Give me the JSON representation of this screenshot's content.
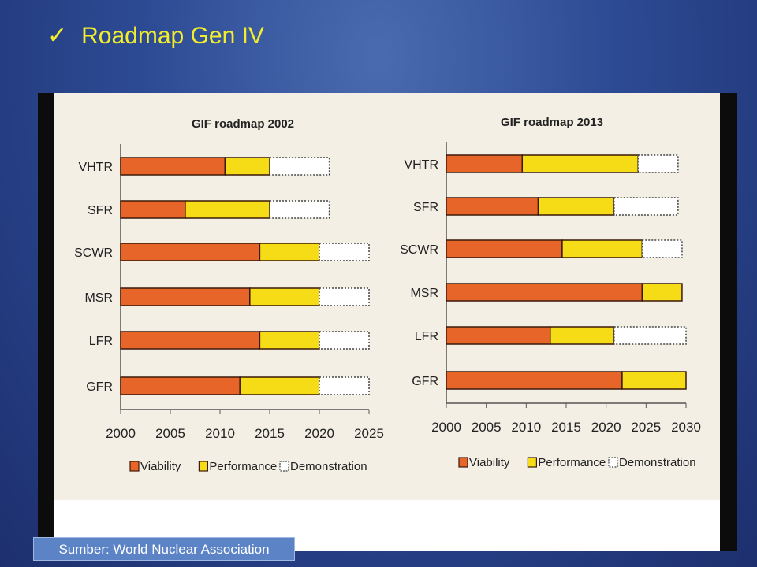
{
  "slide": {
    "title": "Roadmap Gen IV",
    "check_icon": "✓",
    "source": "Sumber: World Nuclear Association",
    "title_color": "#f2ee2c"
  },
  "colors": {
    "viability": "#e8652a",
    "performance": "#f6dc16",
    "demonstration": "#ffffff"
  },
  "chart_data": [
    {
      "type": "bar",
      "subtype": "gantt",
      "title": "GIF roadmap 2002",
      "categories": [
        "VHTR",
        "SFR",
        "SCWR",
        "MSR",
        "LFR",
        "GFR"
      ],
      "xlim": [
        2000,
        2025
      ],
      "xticks": [
        2000,
        2005,
        2010,
        2015,
        2020,
        2025
      ],
      "legend": [
        "Viability",
        "Performance",
        "Demonstration"
      ],
      "legend_placement": "bottom",
      "series": [
        {
          "name": "Viability",
          "start": [
            2000,
            2000,
            2000,
            2000,
            2000,
            2000
          ],
          "end": [
            2010.5,
            2006.5,
            2014,
            2013,
            2014,
            2012
          ]
        },
        {
          "name": "Performance",
          "start": [
            2010.5,
            2006.5,
            2014,
            2013,
            2014,
            2012
          ],
          "end": [
            2015,
            2015,
            2020,
            2020,
            2020,
            2020
          ]
        },
        {
          "name": "Demonstration",
          "start": [
            2015,
            2015,
            2020,
            2020,
            2020,
            2020
          ],
          "end": [
            2021,
            2021,
            2025,
            2025,
            2025,
            2025
          ]
        }
      ]
    },
    {
      "type": "bar",
      "subtype": "gantt",
      "title": "GIF roadmap 2013",
      "categories": [
        "VHTR",
        "SFR",
        "SCWR",
        "MSR",
        "LFR",
        "GFR"
      ],
      "xlim": [
        2000,
        2030
      ],
      "xticks": [
        2000,
        2005,
        2010,
        2015,
        2020,
        2025,
        2030
      ],
      "legend": [
        "Viability",
        "Performance",
        "Demonstration"
      ],
      "legend_placement": "bottom",
      "series": [
        {
          "name": "Viability",
          "start": [
            2000,
            2000,
            2000,
            2000,
            2000,
            2000
          ],
          "end": [
            2009.5,
            2011.5,
            2014.5,
            2024.5,
            2013,
            2022
          ]
        },
        {
          "name": "Performance",
          "start": [
            2009.5,
            2011.5,
            2014.5,
            2024.5,
            2013,
            2022
          ],
          "end": [
            2024,
            2021,
            2024.5,
            2029.5,
            2021,
            2030
          ]
        },
        {
          "name": "Demonstration",
          "start": [
            2024,
            2021,
            2024.5,
            null,
            2021,
            null
          ],
          "end": [
            2029,
            2029,
            2029.5,
            null,
            2030,
            null
          ]
        }
      ]
    }
  ]
}
